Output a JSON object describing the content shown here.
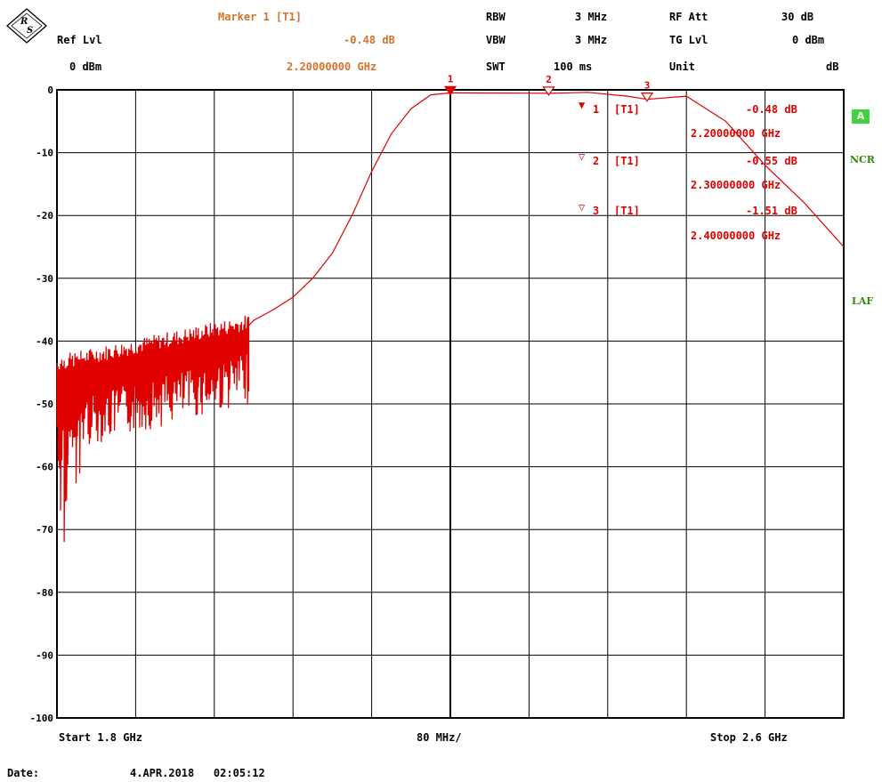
{
  "header": {
    "marker_title": "Marker 1 [T1]",
    "ref_lvl_label": "Ref Lvl",
    "ref_lvl_value": "0 dBm",
    "marker_level": "-0.48 dB",
    "marker_freq": "2.20000000 GHz",
    "rbw_label": "RBW",
    "rbw_value": "3 MHz",
    "vbw_label": "VBW",
    "vbw_value": "3 MHz",
    "swt_label": "SWT",
    "swt_value": "100 ms",
    "rfatt_label": "RF Att",
    "rfatt_value": "30 dB",
    "tglvl_label": "TG Lvl",
    "tglvl_value": "0 dBm",
    "unit_label": "Unit",
    "unit_value": "dB"
  },
  "markers_table": [
    {
      "symbol": "▼",
      "index": "1",
      "trace": "[T1]",
      "level": "-0.48 dB",
      "freq": "2.20000000 GHz"
    },
    {
      "symbol": "▽",
      "index": "2",
      "trace": "[T1]",
      "level": "-0.55 dB",
      "freq": "2.30000000 GHz"
    },
    {
      "symbol": "▽",
      "index": "3",
      "trace": "[T1]",
      "level": "-1.51 dB",
      "freq": "2.40000000 GHz"
    }
  ],
  "side_labels": {
    "badge": "A",
    "ncr": "NCR",
    "laf": "LAF"
  },
  "footer": {
    "start": "Start 1.8 GHz",
    "span": "80 MHz/",
    "stop": "Stop 2.6 GHz",
    "date_label": "Date:",
    "date_value": "4.APR.2018   02:05:12"
  },
  "colors": {
    "trace": "#e00000",
    "marker_text": "#d4722c",
    "grid": "#000000",
    "side_label": "#2d8a00"
  },
  "chart_data": {
    "type": "line",
    "xlabel": "",
    "ylabel": "",
    "x_unit": "GHz",
    "y_unit": "dB",
    "xlim": [
      1.8,
      2.6
    ],
    "ylim": [
      -100,
      0
    ],
    "y_ticks": [
      0,
      -10,
      -20,
      -30,
      -40,
      -50,
      -60,
      -70,
      -80,
      -90,
      -100
    ],
    "y_tick_labels": [
      "0",
      "-10",
      "-20",
      "-30",
      "-40",
      "-50",
      "-60",
      "-70",
      "-80",
      "-90",
      "-100"
    ],
    "x_divisions": 10,
    "grid": true,
    "series": [
      {
        "x": [
          1.8,
          1.82,
          1.84,
          1.86,
          1.88,
          1.9,
          1.92,
          1.94,
          1.96,
          1.98,
          1.995,
          2.0,
          2.02,
          2.04,
          2.06,
          2.08,
          2.1,
          2.12,
          2.14,
          2.16,
          2.18,
          2.2,
          2.24,
          2.28,
          2.3,
          2.34,
          2.38,
          2.4,
          2.44,
          2.48,
          2.52,
          2.56,
          2.6
        ],
        "values": [
          -49,
          -48,
          -47,
          -46,
          -45,
          -44.5,
          -43.5,
          -42.5,
          -41.5,
          -40,
          -37.5,
          -36.7,
          -35,
          -33,
          -30,
          -26,
          -20,
          -13,
          -7,
          -3,
          -0.8,
          -0.48,
          -0.5,
          -0.52,
          -0.55,
          -0.4,
          -1.0,
          -1.51,
          -1.0,
          -5,
          -12,
          -18,
          -25
        ]
      }
    ],
    "noise_region": {
      "x_start": 1.8,
      "x_end": 1.995,
      "min_level": -72,
      "max_level": -37
    },
    "markers": [
      {
        "label": "1",
        "x": 2.2,
        "y": -0.48
      },
      {
        "label": "2",
        "x": 2.3,
        "y": -0.55
      },
      {
        "label": "3",
        "x": 2.4,
        "y": -1.51
      }
    ]
  }
}
